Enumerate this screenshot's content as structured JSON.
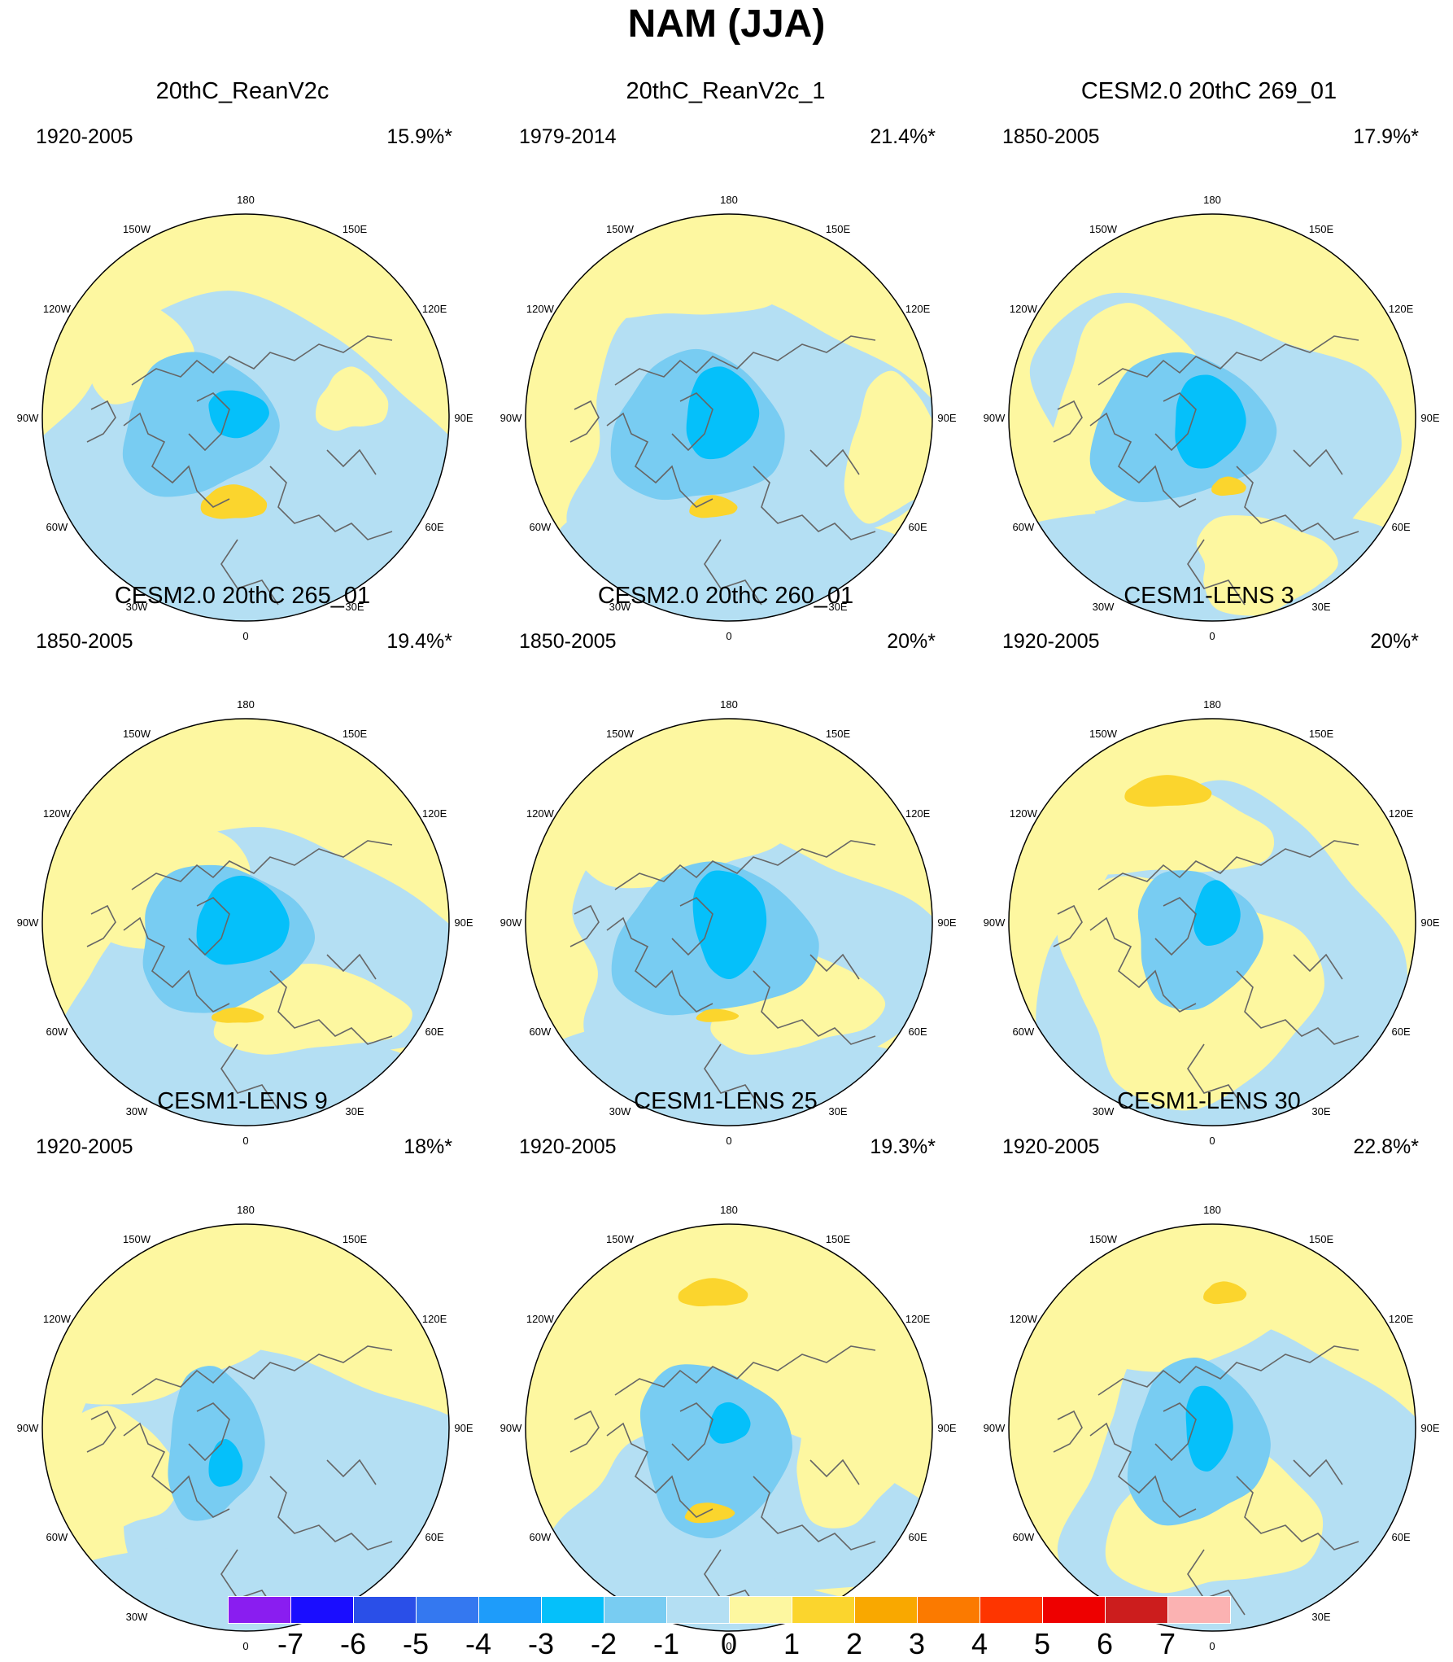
{
  "title": "NAM (JJA)",
  "panels": [
    {
      "title": "20thC_ReanV2c",
      "period": "1920-2005",
      "variance": "15.9%*"
    },
    {
      "title": "20thC_ReanV2c_1",
      "period": "1979-2014",
      "variance": "21.4%*"
    },
    {
      "title": "CESM2.0 20thC 269_01",
      "period": "1850-2005",
      "variance": "17.9%*"
    },
    {
      "title": "CESM2.0 20thC 265_01",
      "period": "1850-2005",
      "variance": "19.4%*"
    },
    {
      "title": "CESM2.0 20thC 260_01",
      "period": "1850-2005",
      "variance": "20%*"
    },
    {
      "title": "CESM1-LENS 3",
      "period": "1920-2005",
      "variance": "20%*"
    },
    {
      "title": "CESM1-LENS 9",
      "period": "1920-2005",
      "variance": "18%*"
    },
    {
      "title": "CESM1-LENS 25",
      "period": "1920-2005",
      "variance": "19.3%*"
    },
    {
      "title": "CESM1-LENS 30",
      "period": "1920-2005",
      "variance": "22.8%*"
    }
  ],
  "longitude_labels": [
    "180",
    "150W",
    "150E",
    "120W",
    "120E",
    "90W",
    "90E",
    "60W",
    "60E",
    "30W",
    "30E",
    "0"
  ],
  "colorbar": {
    "labels": [
      "-7",
      "-6",
      "-5",
      "-4",
      "-3",
      "-2",
      "-1",
      "0",
      "1",
      "2",
      "3",
      "4",
      "5",
      "6",
      "7"
    ],
    "colors": [
      "#8a1df0",
      "#1a0dff",
      "#2a4fe8",
      "#3478f0",
      "#1e9cfa",
      "#05c0fa",
      "#78ccf2",
      "#b4dff3",
      "#fdf7a0",
      "#fbd52d",
      "#f9a800",
      "#fb7a00",
      "#fe3500",
      "#ee0000",
      "#cc1d1d",
      "#fbb2b2"
    ]
  },
  "colors": {
    "pos1": "#fdf7a0",
    "pos2": "#fbd52d",
    "neg1": "#b4dff3",
    "neg2": "#78ccf2",
    "neg3": "#05c0fa",
    "neg4": "#1e9cfa",
    "coast": "#666666"
  }
}
